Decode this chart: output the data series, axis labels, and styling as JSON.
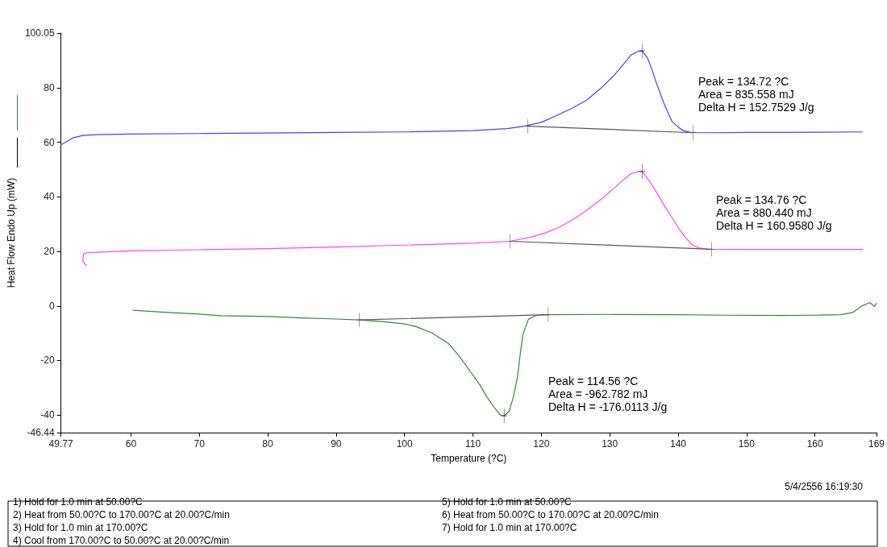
{
  "chart_data": {
    "type": "line",
    "xlabel": "Temperature (?C)",
    "ylabel": "Heat Flow Endo Up (mW)",
    "xlim": [
      49.77,
      169
    ],
    "xticks": [
      49.77,
      60,
      70,
      80,
      90,
      100,
      110,
      120,
      130,
      140,
      150,
      160,
      169
    ],
    "ylim": [
      -46.44,
      100.05
    ],
    "yticks": [
      -46.44,
      -40,
      -20,
      0,
      20,
      40,
      60,
      80,
      100.05
    ],
    "grid": false,
    "marker": "none",
    "line_style": "solid",
    "series": [
      {
        "color": "#4040ff",
        "x": [
          49.77,
          50.5,
          51.5,
          53,
          55,
          60,
          70,
          80,
          90,
          100,
          110,
          115,
          117.5,
          120,
          122.6,
          124.5,
          126.6,
          128.7,
          130.7,
          132,
          133.1,
          134.2,
          134.72,
          135.5,
          136.1,
          136.7,
          137.3,
          137.9,
          138.5,
          139.1,
          140,
          140.8,
          141.7,
          142.8,
          145,
          150,
          155,
          160,
          166.9
        ],
        "values": [
          59.1,
          60.1,
          61.6,
          62.5,
          62.8,
          63.0,
          63.2,
          63.4,
          63.6,
          63.8,
          64.3,
          65.0,
          65.9,
          67.3,
          70.2,
          72.5,
          75.4,
          79.8,
          84.7,
          88.6,
          92.0,
          93.4,
          93.5,
          91.0,
          87.2,
          82.6,
          78.5,
          74.4,
          70.9,
          67.6,
          65.6,
          64.2,
          63.7,
          63.5,
          63.5,
          63.6,
          63.6,
          63.7,
          63.8
        ]
      },
      {
        "color": "#ff40ff",
        "x": [
          53.5,
          53.2,
          53.0,
          53.0,
          53.1,
          53.5,
          55,
          60,
          70,
          80,
          90,
          100,
          110,
          115.4,
          118.5,
          120.5,
          122.6,
          124.6,
          126.6,
          128.7,
          130.7,
          132,
          133.1,
          134.3,
          134.76,
          135.9,
          136.9,
          137.9,
          139,
          140,
          141,
          142,
          143,
          144.3,
          150,
          155,
          160,
          167
        ],
        "values": [
          14.8,
          15.5,
          16.5,
          18.0,
          19.0,
          19.5,
          19.7,
          20.2,
          20.6,
          21.0,
          21.6,
          22.3,
          23.0,
          23.7,
          25.2,
          26.7,
          28.8,
          31.6,
          35.0,
          39.0,
          43.3,
          46.2,
          48.5,
          49.3,
          49.3,
          45.4,
          41.4,
          37.1,
          32.8,
          28.8,
          25.2,
          22.5,
          21.3,
          20.8,
          20.7,
          20.7,
          20.7,
          20.7
        ]
      },
      {
        "color": "#2e8b2e",
        "x": [
          60.3,
          65,
          70,
          73.1,
          80,
          85,
          90,
          93.4,
          97,
          100,
          101.6,
          104,
          106.4,
          108,
          109.6,
          111,
          112.05,
          113.2,
          114.07,
          114.56,
          115.3,
          115.9,
          116.5,
          116.9,
          117.3,
          118.1,
          119.3,
          121,
          130,
          140,
          146.8,
          154.9,
          160,
          163.8,
          165.5,
          167,
          168,
          168.3,
          168.7,
          169
        ],
        "values": [
          -1.6,
          -2.3,
          -3.0,
          -3.6,
          -3.9,
          -4.4,
          -4.8,
          -5.1,
          -5.8,
          -6.6,
          -7.5,
          -9.9,
          -13.7,
          -18.4,
          -24.0,
          -28.9,
          -33.4,
          -37.5,
          -40.1,
          -40.3,
          -38.6,
          -33.5,
          -26.2,
          -18.0,
          -10.6,
          -4.9,
          -3.4,
          -3.2,
          -3.1,
          -3.2,
          -3.4,
          -3.5,
          -3.4,
          -3.2,
          -2.4,
          0.2,
          1.2,
          0.7,
          -0.2,
          0.9
        ]
      },
      {
        "color": "#555555",
        "marker": "cross",
        "x": [
          118.0,
          142.2
        ],
        "values": [
          65.9,
          63.5
        ]
      },
      {
        "color": "#555555",
        "marker": "cross",
        "x": [
          115.4,
          144.9
        ],
        "values": [
          23.7,
          20.8
        ]
      },
      {
        "color": "#555555",
        "marker": "cross",
        "x": [
          93.4,
          121.0
        ],
        "values": [
          -5.1,
          -3.2
        ]
      },
      {
        "type": "scatter",
        "color": "#000000",
        "marker": "cross",
        "x": [
          134.72,
          134.76,
          114.56
        ],
        "values": [
          93.5,
          49.3,
          -40.3
        ]
      }
    ],
    "annotations": [
      "Peak = 134.72 ?C\nArea = 835.558 mJ\nDelta H = 152.7529 J/g",
      "Peak = 134.76 ?C\nArea = 880.440 mJ\nDelta H = 160.9580 J/g",
      "Peak = 114.56 ?C\nArea = -962.782 mJ\nDelta H = -176.0113 J/g",
      "5/4/2556 16:19:30",
      "1) Hold for 1.0 min at 50.00?C",
      "2) Heat from 50.00?C to 170.00?C at 20.00?C/min",
      "3) Hold for 1.0 min at 170.00?C",
      "4) Cool from 170.00?C to 50.00?C at 20.00?C/min",
      "5) Hold for 1.0 min at 50.00?C",
      "6) Heat from 50.00?C to 170.00?C at 20.00?C/min",
      "7) Hold for 1.0 min at 170.00?C"
    ]
  }
}
